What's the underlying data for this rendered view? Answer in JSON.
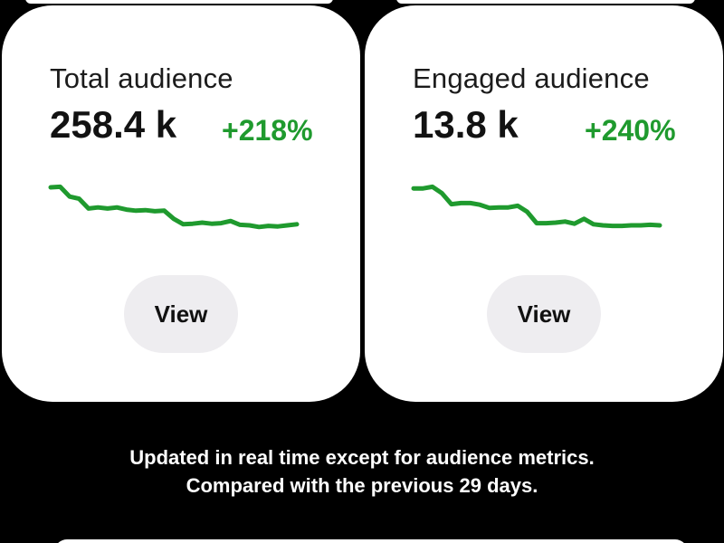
{
  "cards": [
    {
      "title": "Total audience",
      "value": "258.4 k",
      "change": "+218%",
      "button_label": "View",
      "trend": [
        0.95,
        0.96,
        0.78,
        0.74,
        0.56,
        0.58,
        0.56,
        0.58,
        0.54,
        0.52,
        0.53,
        0.51,
        0.52,
        0.37,
        0.27,
        0.28,
        0.3,
        0.28,
        0.29,
        0.33,
        0.26,
        0.25,
        0.22,
        0.24,
        0.23,
        0.25,
        0.27
      ]
    },
    {
      "title": "Engaged audience",
      "value": "13.8 k",
      "change": "+240%",
      "button_label": "View",
      "trend": [
        0.93,
        0.93,
        0.96,
        0.84,
        0.64,
        0.66,
        0.66,
        0.63,
        0.57,
        0.58,
        0.58,
        0.61,
        0.5,
        0.29,
        0.29,
        0.3,
        0.32,
        0.28,
        0.37,
        0.27,
        0.25,
        0.24,
        0.24,
        0.25,
        0.25,
        0.26,
        0.25
      ]
    }
  ],
  "footnote": {
    "line1": "Updated in real time except for audience metrics.",
    "line2": "Compared with the previous 29 days."
  },
  "colors": {
    "positive": "#1f9a2e",
    "trend_line": "#1f9a2e",
    "card_background": "#ffffff",
    "page_background": "#000000",
    "button_background": "#eeedf0"
  }
}
